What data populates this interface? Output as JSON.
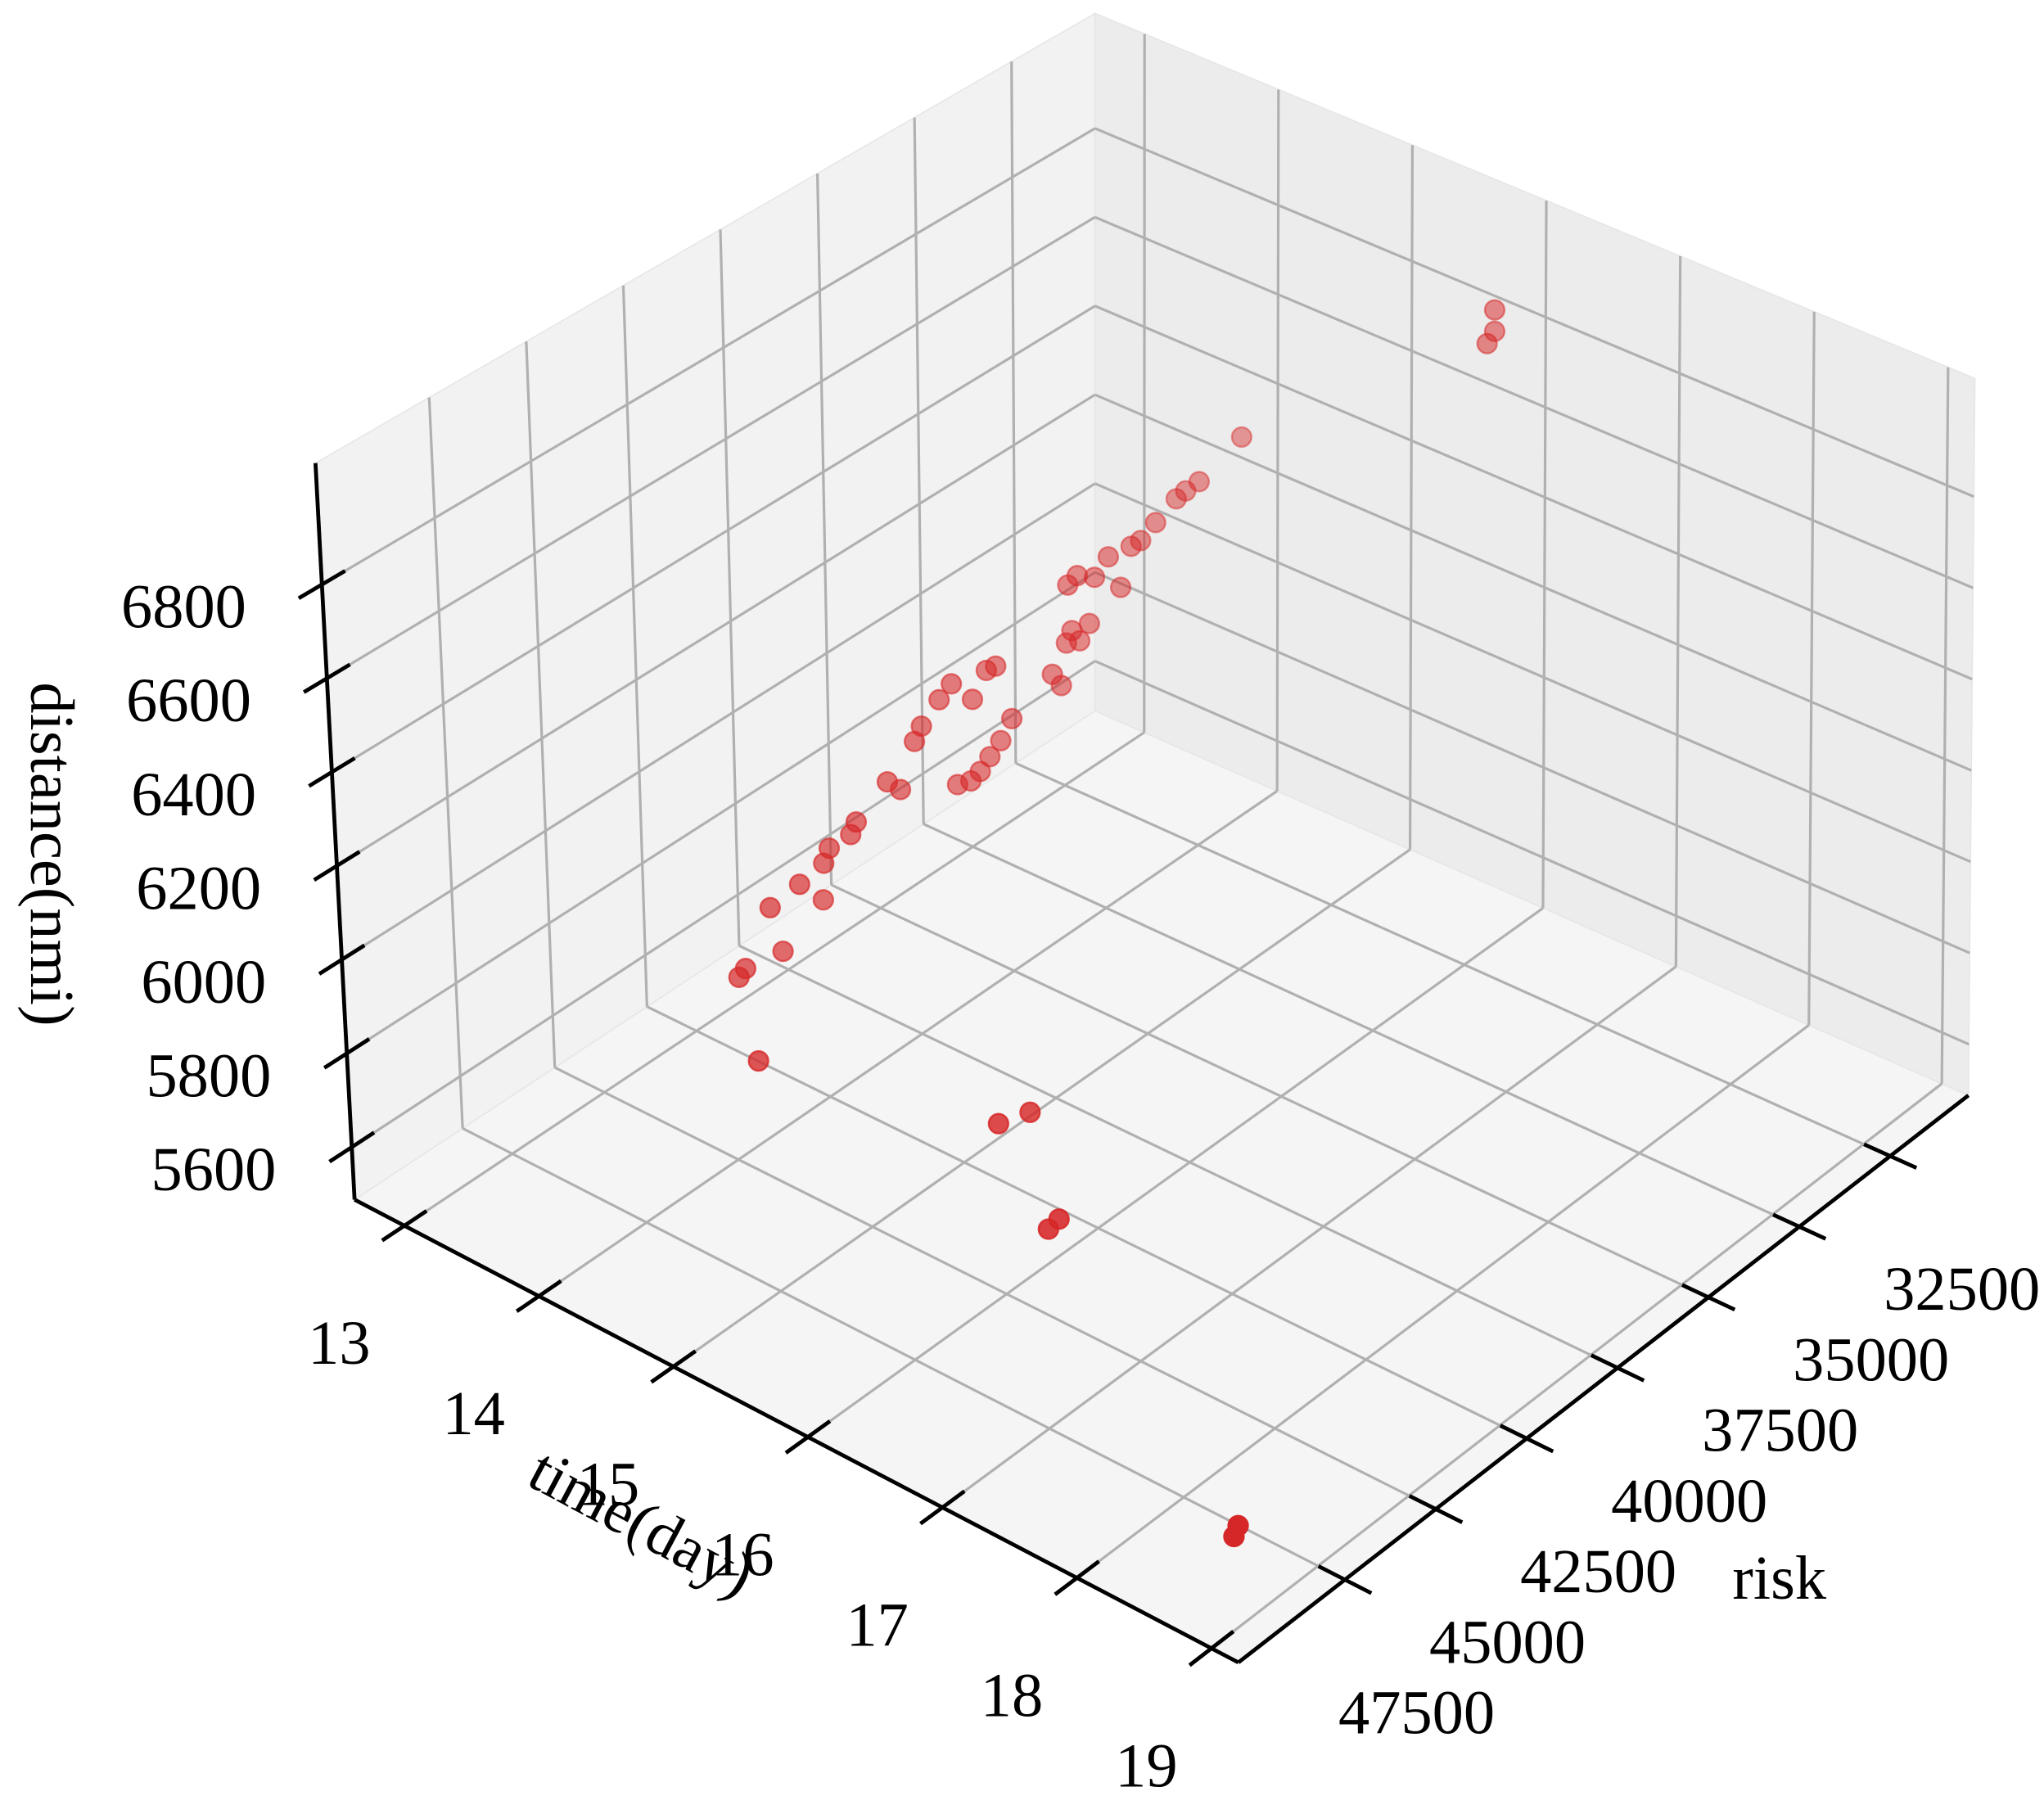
{
  "chart_data": {
    "type": "scatter3d",
    "x_label": "time(day)",
    "y_label": "risk",
    "z_label": "distance(nmi)",
    "color": "#d62728",
    "xlim": [
      12.63,
      19.2
    ],
    "ylim": [
      30350,
      50430
    ],
    "zlim": [
      5488,
      7059
    ],
    "xticks": [
      13,
      14,
      15,
      16,
      17,
      18,
      19
    ],
    "yticks": [
      32500,
      35000,
      37500,
      40000,
      42500,
      45000,
      47500
    ],
    "zticks": [
      5600,
      5800,
      6000,
      6200,
      6400,
      6600,
      6800
    ],
    "grid": true,
    "x": [
      14.6,
      14.6,
      14.6,
      14.6,
      14.6,
      14.6,
      14.6,
      14.6,
      14.6,
      14.6,
      14.6,
      14.6,
      14.6,
      14.6,
      14.6,
      14.6,
      14.6,
      14.6,
      14.6,
      14.6,
      14.6,
      14.6,
      14.6,
      14.6,
      14.6,
      14.6,
      14.6,
      14.6,
      14.6,
      14.6,
      14.6,
      14.6,
      14.6,
      14.6,
      14.6,
      14.6,
      14.6,
      14.6,
      14.6,
      14.6,
      14.6,
      14.6,
      14.6,
      15.26,
      16.57,
      16.57,
      17.23,
      17.23,
      18.87,
      18.87,
      16.18,
      16.18,
      16.18
    ],
    "y": [
      46953,
      46769,
      45773,
      46081,
      45289,
      44673,
      44638,
      44484,
      43911,
      43759,
      42915,
      42572,
      42176,
      41986,
      41505,
      41175,
      40629,
      40252,
      40002,
      39598,
      39900,
      40195,
      40708,
      41062,
      40454,
      38506,
      38272,
      38125,
      37973,
      37772,
      37511,
      38069,
      37815,
      37361,
      36671,
      36990,
      36386,
      36134,
      35732,
      35184,
      34931,
      34572,
      33443,
      48838,
      47189,
      46340,
      48288,
      47999,
      49327,
      49212,
      32359,
      32359,
      32560
    ],
    "z": [
      6071,
      6080,
      6064,
      6174,
      6182,
      6116,
      6193,
      6217,
      6216,
      6235,
      6277,
      6242,
      6325,
      6348,
      6380,
      6397,
      6334,
      6377,
      6373,
      6237,
      6205,
      6186,
      6161,
      6172,
      6168,
      6275,
      6238,
      6323,
      6342,
      6309,
      6333,
      6447,
      6454,
      6426,
      6367,
      6451,
      6442,
      6441,
      6459,
      6482,
      6486,
      6487,
      6525,
      6089,
      6056,
      6033,
      5989,
      5994,
      5639,
      5655,
      6902,
      6949,
      6886
    ]
  }
}
